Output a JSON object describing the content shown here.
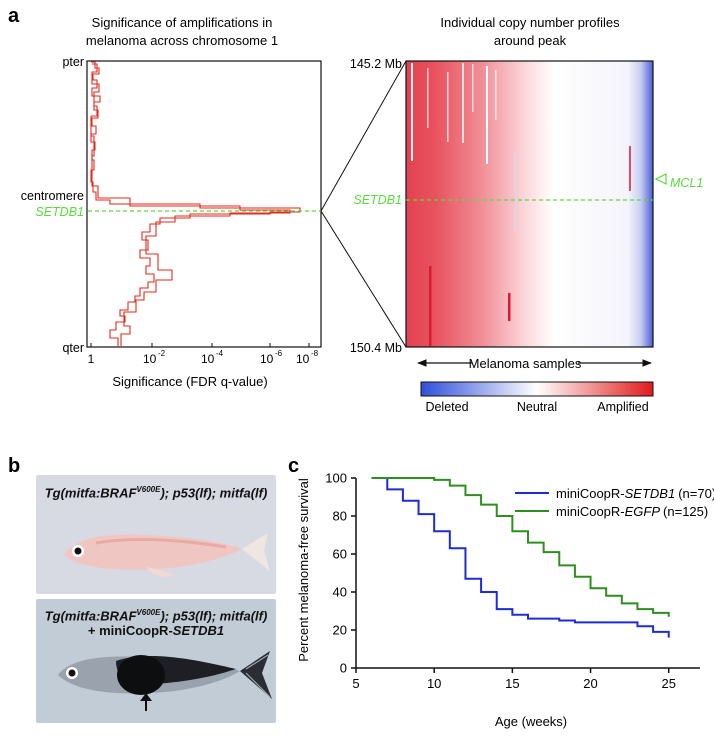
{
  "panel_labels": {
    "a": "a",
    "b": "b",
    "c": "c"
  },
  "panel_a": {
    "left": {
      "title_line1": "Significance of amplifications in",
      "title_line2": "melanoma across chromosome 1",
      "xlabel": "Significance (FDR q-value)",
      "xtick_one": "1",
      "xtick_exponents": [
        "-2",
        "-4",
        "-6",
        "-8"
      ],
      "xtick_base": "10",
      "ylabels": {
        "top": "pter",
        "middle": "centromere",
        "bottom": "qter"
      },
      "gene_label": "SETDB1"
    },
    "right": {
      "title_line1": "Individual copy number profiles",
      "title_line2": "around peak",
      "y_top": "145.2 Mb",
      "y_bottom": "150.4 Mb",
      "xlabel": "Melanoma samples",
      "gene_left": "SETDB1",
      "gene_right": "MCL1",
      "colorbar": {
        "deleted": "Deleted",
        "neutral": "Neutral",
        "amplified": "Amplified"
      }
    },
    "colors": {
      "amplified": "#e8303a",
      "deleted": "#3a5bd8",
      "neutral": "#ffffff",
      "highlight": "#5bdc3c",
      "trace": "#e42a1e"
    }
  },
  "panel_b": {
    "top_caption": {
      "pre": "Tg(mitfa:BRAF",
      "sup": "V600E",
      "post": "); p53(lf); mitfa(lf)"
    },
    "bottom_caption": {
      "pre": "Tg(mitfa:BRAF",
      "sup": "V600E",
      "post": "); p53(lf); mitfa(lf)",
      "line2_plain": "+ miniCoopR-",
      "line2_italic": "SETDB1"
    }
  },
  "chart_data": {
    "type": "line",
    "xlabel": "Age (weeks)",
    "ylabel": "Percent melanoma-free survival",
    "xlim": [
      5,
      27
    ],
    "ylim": [
      0,
      100
    ],
    "xticks": [
      5,
      10,
      15,
      20,
      25
    ],
    "yticks": [
      0,
      20,
      40,
      60,
      80,
      100
    ],
    "legend_position": "top-right",
    "series": [
      {
        "name": "miniCoopR-SETDB1",
        "name_plain": "miniCoopR-",
        "name_italic": "SETDB1",
        "n": "(n=70)",
        "color": "#1f2bd6",
        "x": [
          6,
          7,
          8,
          9,
          10,
          11,
          12,
          13,
          14,
          15,
          16,
          17,
          18,
          19,
          20,
          21,
          22,
          23,
          24,
          25
        ],
        "y": [
          100,
          94,
          88,
          81,
          72,
          63,
          47,
          40,
          31,
          28,
          26,
          26,
          25,
          24,
          24,
          24,
          24,
          22,
          19,
          16
        ]
      },
      {
        "name": "miniCoopR-EGFP",
        "name_plain": "miniCoopR-",
        "name_italic": "EGFP",
        "n": "(n=125)",
        "color": "#2f8f1e",
        "x": [
          6,
          7,
          8,
          9,
          10,
          11,
          12,
          13,
          14,
          15,
          16,
          17,
          18,
          19,
          20,
          21,
          22,
          23,
          24,
          25
        ],
        "y": [
          100,
          100,
          100,
          100,
          99,
          96,
          91,
          86,
          80,
          72,
          66,
          61,
          54,
          48,
          42,
          38,
          34,
          31,
          29,
          27
        ]
      }
    ]
  }
}
